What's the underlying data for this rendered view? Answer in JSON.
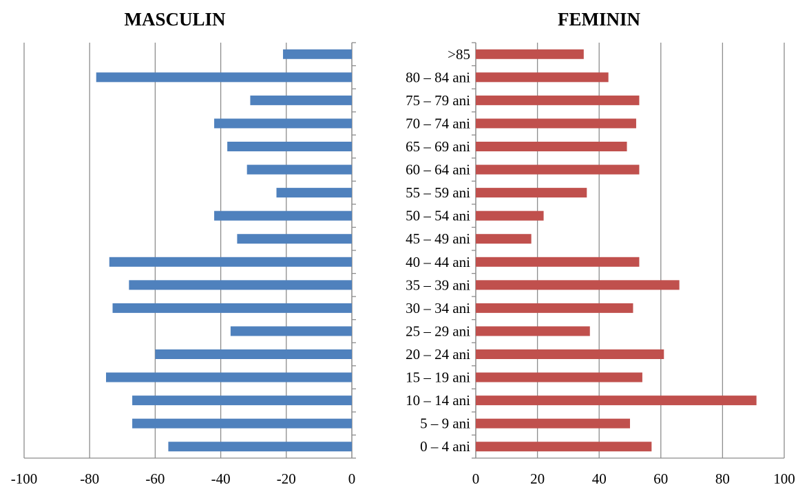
{
  "chart_data": [
    {
      "type": "bar",
      "orientation": "horizontal",
      "title": "MASCULIN",
      "color": "#4f81bd",
      "xlim": [
        -100,
        0
      ],
      "xticks": [
        "-100",
        "-80",
        "-60",
        "-40",
        "-20",
        "0"
      ],
      "categories": [
        ">85",
        "80 – 84 ani",
        "75 – 79 ani",
        "70 – 74 ani",
        "65 – 69 ani",
        "60 – 64 ani",
        "55 – 59 ani",
        "50 – 54 ani",
        "45 – 49 ani",
        "40 – 44 ani",
        "35 – 39 ani",
        "30 – 34 ani",
        "25 – 29 ani",
        "20 – 24 ani",
        "15 – 19 ani",
        "10 – 14 ani",
        "5 – 9 ani",
        "0 – 4 ani"
      ],
      "values": [
        -21,
        -78,
        -31,
        -42,
        -38,
        -32,
        -23,
        -42,
        -35,
        -74,
        -68,
        -73,
        -37,
        -60,
        -75,
        -67,
        -67,
        -56
      ],
      "grid": true
    },
    {
      "type": "bar",
      "orientation": "horizontal",
      "title": "FEMININ",
      "color": "#c0504d",
      "xlim": [
        0,
        100
      ],
      "xticks": [
        "0",
        "20",
        "40",
        "60",
        "80",
        "100"
      ],
      "categories": [
        ">85",
        "80 – 84 ani",
        "75 – 79 ani",
        "70 – 74 ani",
        "65 – 69 ani",
        "60 – 64 ani",
        "55 – 59 ani",
        "50 – 54 ani",
        "45 – 49 ani",
        "40 – 44 ani",
        "35 – 39 ani",
        "30 – 34 ani",
        "25 – 29 ani",
        "20 – 24 ani",
        "15 – 19 ani",
        "10 – 14 ani",
        "5 – 9 ani",
        "0 – 4 ani"
      ],
      "values": [
        35,
        43,
        53,
        52,
        49,
        53,
        36,
        22,
        18,
        53,
        66,
        51,
        37,
        61,
        54,
        91,
        50,
        57
      ],
      "grid": true
    }
  ]
}
